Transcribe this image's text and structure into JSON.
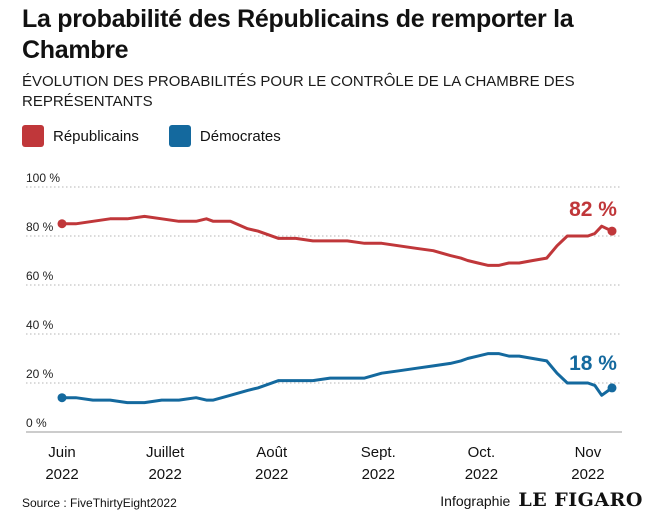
{
  "title": "La probabilité des Républicains de remporter la Chambre",
  "subtitle": "ÉVOLUTION DES PROBABILITÉS POUR LE CONTRÔLE DE LA CHAMBRE DES REPRÉSENTANTS",
  "legend": [
    {
      "name": "Républicains",
      "color": "#c0373a"
    },
    {
      "name": "Démocrates",
      "color": "#14699e"
    }
  ],
  "source": "Source : FiveThirtyEight2022",
  "credit_label": "Infographie",
  "credit_logo": "LE FIGARO",
  "chart_data": {
    "type": "line",
    "ylim": [
      0,
      100
    ],
    "y_ticks": [
      0,
      20,
      40,
      60,
      80,
      100
    ],
    "y_tick_labels": [
      "0 %",
      "20 %",
      "40 %",
      "60 %",
      "80 %",
      "100 %"
    ],
    "grid": "horizontal-dotted",
    "x_range": [
      "2022-06-01",
      "2022-11-08"
    ],
    "x_ticks": [
      {
        "date": "2022-06-01",
        "label": [
          "Juin",
          "2022"
        ]
      },
      {
        "date": "2022-07-01",
        "label": [
          "Juillet",
          "2022"
        ]
      },
      {
        "date": "2022-08-01",
        "label": [
          "Août",
          "2022"
        ]
      },
      {
        "date": "2022-09-01",
        "label": [
          "Sept.",
          "2022"
        ]
      },
      {
        "date": "2022-10-01",
        "label": [
          "Oct.",
          "2022"
        ]
      },
      {
        "date": "2022-11-01",
        "label": [
          "Nov",
          "2022"
        ]
      }
    ],
    "series": [
      {
        "name": "Républicains",
        "color": "#c0373a",
        "end_label": "82 %",
        "x": [
          "2022-06-01",
          "2022-06-05",
          "2022-06-10",
          "2022-06-15",
          "2022-06-20",
          "2022-06-25",
          "2022-06-30",
          "2022-07-05",
          "2022-07-10",
          "2022-07-13",
          "2022-07-15",
          "2022-07-20",
          "2022-07-25",
          "2022-07-28",
          "2022-08-03",
          "2022-08-08",
          "2022-08-13",
          "2022-08-18",
          "2022-08-23",
          "2022-08-28",
          "2022-09-02",
          "2022-09-07",
          "2022-09-12",
          "2022-09-17",
          "2022-09-22",
          "2022-09-25",
          "2022-09-27",
          "2022-09-30",
          "2022-10-03",
          "2022-10-06",
          "2022-10-09",
          "2022-10-12",
          "2022-10-16",
          "2022-10-20",
          "2022-10-23",
          "2022-10-26",
          "2022-10-29",
          "2022-11-01",
          "2022-11-03",
          "2022-11-05",
          "2022-11-08"
        ],
        "y": [
          85,
          85,
          86,
          87,
          87,
          88,
          87,
          86,
          86,
          87,
          86,
          86,
          83,
          82,
          79,
          79,
          78,
          78,
          78,
          77,
          77,
          76,
          75,
          74,
          72,
          71,
          70,
          69,
          68,
          68,
          69,
          69,
          70,
          71,
          76,
          80,
          80,
          80,
          81,
          84,
          82
        ]
      },
      {
        "name": "Démocrates",
        "color": "#14699e",
        "end_label": "18 %",
        "x": [
          "2022-06-01",
          "2022-06-05",
          "2022-06-10",
          "2022-06-15",
          "2022-06-20",
          "2022-06-25",
          "2022-06-30",
          "2022-07-05",
          "2022-07-10",
          "2022-07-13",
          "2022-07-15",
          "2022-07-20",
          "2022-07-25",
          "2022-07-28",
          "2022-08-03",
          "2022-08-08",
          "2022-08-13",
          "2022-08-18",
          "2022-08-23",
          "2022-08-28",
          "2022-09-02",
          "2022-09-07",
          "2022-09-12",
          "2022-09-17",
          "2022-09-22",
          "2022-09-25",
          "2022-09-27",
          "2022-09-30",
          "2022-10-03",
          "2022-10-06",
          "2022-10-09",
          "2022-10-12",
          "2022-10-16",
          "2022-10-20",
          "2022-10-23",
          "2022-10-26",
          "2022-10-29",
          "2022-11-01",
          "2022-11-03",
          "2022-11-05",
          "2022-11-08"
        ],
        "y": [
          14,
          14,
          13,
          13,
          12,
          12,
          13,
          13,
          14,
          13,
          13,
          15,
          17,
          18,
          21,
          21,
          21,
          22,
          22,
          22,
          24,
          25,
          26,
          27,
          28,
          29,
          30,
          31,
          32,
          32,
          31,
          31,
          30,
          29,
          24,
          20,
          20,
          20,
          19,
          15,
          18
        ]
      }
    ]
  }
}
